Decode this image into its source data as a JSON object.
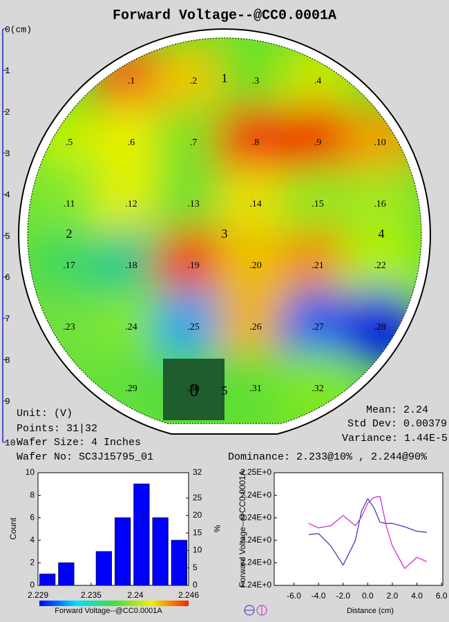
{
  "chart_data": [
    {
      "type": "wafer",
      "title": "Forward Voltage--@CC0.0001A",
      "ylim": [
        0,
        10
      ],
      "yticks": [
        {
          "value": 0,
          "label": "0(cm)"
        },
        1,
        2,
        3,
        4,
        5,
        6,
        7,
        8,
        9,
        10
      ],
      "points": [
        [
          ".1",
          ".2",
          ".3",
          ".4"
        ],
        [
          ".5",
          ".6",
          ".7",
          ".8",
          ".9",
          ".10"
        ],
        [
          ".11",
          ".12",
          ".13",
          ".14",
          ".15",
          ".16"
        ],
        [
          ".17",
          ".18",
          ".19",
          ".20",
          ".21",
          ".22"
        ],
        [
          ".23",
          ".24",
          ".25",
          ".26",
          ".27",
          ".28"
        ],
        [
          ".29",
          ".30",
          ".31",
          ".32"
        ]
      ],
      "point_colors": [
        [
          "#f06a18",
          "#f0c800",
          "#70e020",
          "#c8e800"
        ],
        [
          "#c0f000",
          "#e8f000",
          "#80e020",
          "#f03010",
          "#f02000",
          "#f0a000"
        ],
        [
          "#80e830",
          "#e0f000",
          "#70e030",
          "#e8e000",
          "#90e820",
          "#a0e820"
        ],
        [
          "#40d860",
          "#20c890",
          "#f04010",
          "#f0c000",
          "#f09000",
          "#b0f000"
        ],
        [
          "#70e040",
          "#80e830",
          "#20a0f0",
          "#f0b000",
          "#2060f0",
          "#0020e0"
        ],
        [
          "#60e040",
          "#50d840",
          "#60e030",
          "#80e820"
        ]
      ],
      "regions": [
        "1",
        "2",
        "3",
        "4",
        "5"
      ],
      "marker": "0",
      "texts": {
        "unit": "Unit: (V)",
        "points": "Points: 31|32",
        "size": "Wafer Size: 4 Inches",
        "wafer_no": "Wafer No: SC3J15795_01",
        "mean": "Mean: 2.24",
        "std": "Std Dev: 0.00379",
        "variance": "Variance: 1.44E-5",
        "dominance": "Dominance: 2.233@10% , 2.244@90%"
      }
    },
    {
      "type": "histogram",
      "color": "#0000ff",
      "bins": [
        2.229,
        2.231125,
        2.23325,
        2.235375,
        2.2375,
        2.239625,
        2.24175,
        2.243875,
        2.246
      ],
      "values": [
        1,
        2,
        0,
        3,
        6,
        9,
        6,
        4
      ],
      "xlabel": "Forward Voltage--@CC0.0001A",
      "ylabel": "Count",
      "y2label": "%",
      "xlim": [
        2.229,
        2.246
      ],
      "xticks": [
        2.229,
        2.235,
        2.24,
        2.246
      ],
      "ylim": [
        0,
        10
      ],
      "yticks": [
        0,
        2,
        4,
        6,
        8,
        10
      ],
      "y2lim": [
        0,
        32.26
      ],
      "y2ticks": [
        0,
        5,
        10,
        15,
        20,
        25,
        {
          "value": 32.26,
          "label": "32"
        }
      ]
    },
    {
      "type": "line",
      "ylabel": "Forward Voltage--@CC0.0001A",
      "xlabel": "Distance (cm)",
      "x": [
        -4.8,
        -4,
        -3,
        -2,
        -1,
        -0.5,
        0,
        0.5,
        1,
        1.5,
        2,
        3,
        4,
        4.8
      ],
      "series": [
        {
          "color": "#3030c0",
          "values": [
            2.2405,
            2.2406,
            2.2395,
            2.2378,
            2.24,
            2.2426,
            2.2437,
            2.2429,
            2.2416,
            2.2415,
            2.2415,
            2.2412,
            2.2408,
            2.2407
          ]
        },
        {
          "color": "#d020d0",
          "values": [
            2.2415,
            2.2411,
            2.2413,
            2.2422,
            2.2413,
            2.2421,
            2.2433,
            2.2438,
            2.2439,
            2.2413,
            2.2395,
            2.2375,
            2.2385,
            2.2381
          ]
        }
      ],
      "xlim": [
        -7.6,
        6.1
      ],
      "xticks": [
        {
          "value": -6,
          "label": "-6.0"
        },
        {
          "value": -4,
          "label": "-4.0"
        },
        {
          "value": -2,
          "label": "-2.0"
        },
        {
          "value": 0,
          "label": "0.0"
        },
        {
          "value": 2,
          "label": "2.0"
        },
        {
          "value": 4,
          "label": "4.0"
        },
        {
          "value": 6,
          "label": "6.0"
        }
      ],
      "ylim": [
        2.236,
        2.246
      ],
      "yticks": [
        {
          "value": 2.236,
          "label": "2.24E+0"
        },
        {
          "value": 2.238,
          "label": "2.24E+0"
        },
        {
          "value": 2.24,
          "label": "2.24E+0"
        },
        {
          "value": 2.242,
          "label": "2.24E+0"
        },
        {
          "value": 2.244,
          "label": "2.24E+0"
        },
        {
          "value": 2.246,
          "label": "2.25E+0"
        }
      ]
    }
  ]
}
